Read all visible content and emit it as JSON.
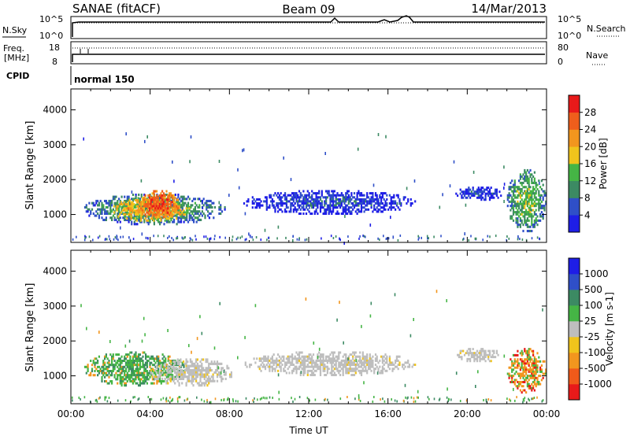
{
  "header": {
    "station": "SANAE (fitACF)",
    "beam": "Beam 09",
    "date": "14/Mar/2013"
  },
  "top_panel": {
    "left_label": "N.Sky",
    "right_label": "N.Search",
    "ticks_left": [
      "10^5",
      "10^0"
    ],
    "ticks_right": [
      "10^5",
      "10^0"
    ]
  },
  "freq_panel": {
    "left_label_1": "Freq.",
    "left_label_2": "[MHz]",
    "right_label": "Nave",
    "ticks_left": [
      "18",
      "8"
    ],
    "ticks_right": [
      "80",
      "0"
    ]
  },
  "cpid": {
    "label": "CPID",
    "value": "normal 150"
  },
  "colors": {
    "power": [
      "#1e1ee6",
      "#2f4fc8",
      "#3c8a63",
      "#45b545",
      "#f0c41c",
      "#f2961e",
      "#ef5e1c",
      "#e81a1a"
    ],
    "velocity": [
      "#e81a1a",
      "#f05a1a",
      "#f2961e",
      "#f0c41c",
      "#bebebe",
      "#45b545",
      "#3c8a63",
      "#2f4fc8",
      "#1e1ee6"
    ]
  },
  "chart_data": [
    {
      "type": "heatmap",
      "name": "Power",
      "ylabel": "Slant Range [km]",
      "yticks": [
        "1000",
        "2000",
        "3000",
        "4000"
      ],
      "ylim": [
        200,
        4600
      ],
      "xlim": [
        "00:00",
        "24:00"
      ],
      "colorbar": {
        "label": "Power [dB]",
        "ticks": [
          "4",
          "8",
          "12",
          "16",
          "20",
          "24",
          "28"
        ],
        "range": [
          0,
          32
        ]
      },
      "regions": [
        {
          "t0": 0.6,
          "t1": 7.8,
          "r0": 700,
          "r1": 1600,
          "value": 12
        },
        {
          "t0": 2.0,
          "t1": 6.0,
          "r0": 800,
          "r1": 1500,
          "value": 22
        },
        {
          "t0": 3.5,
          "t1": 5.5,
          "r0": 900,
          "r1": 1700,
          "value": 28
        },
        {
          "t0": 8.7,
          "t1": 17.4,
          "r0": 1000,
          "r1": 1700,
          "value": 6
        },
        {
          "t0": 19.4,
          "t1": 21.8,
          "r0": 1400,
          "r1": 1800,
          "value": 6
        },
        {
          "t0": 22.0,
          "t1": 24.0,
          "r0": 500,
          "r1": 2300,
          "value": 14
        }
      ]
    },
    {
      "type": "heatmap",
      "name": "Velocity",
      "ylabel": "Slant Range [km]",
      "yticks": [
        "1000",
        "2000",
        "3000",
        "4000"
      ],
      "ylim": [
        200,
        4600
      ],
      "xlabel": "Time UT",
      "xticks": [
        "00:00",
        "04:00",
        "08:00",
        "12:00",
        "16:00",
        "20:00",
        "00:00"
      ],
      "xlim": [
        "00:00",
        "24:00"
      ],
      "colorbar": {
        "label": "Velocity [m s-1]",
        "ticks": [
          "1000",
          "500",
          "100",
          "25",
          "-25",
          "-100",
          "-500",
          "-1000"
        ]
      },
      "regions": [
        {
          "t0": 0.6,
          "t1": 5.8,
          "r0": 700,
          "r1": 1700,
          "value": 100
        },
        {
          "t0": 4.0,
          "t1": 8.2,
          "r0": 700,
          "r1": 1500,
          "value": 0
        },
        {
          "t0": 8.7,
          "t1": 17.4,
          "r0": 1000,
          "r1": 1700,
          "value": 0
        },
        {
          "t0": 19.4,
          "t1": 21.8,
          "r0": 1400,
          "r1": 1800,
          "value": 0
        },
        {
          "t0": 22.0,
          "t1": 24.0,
          "r0": 500,
          "r1": 1800,
          "value": -300
        }
      ]
    }
  ]
}
